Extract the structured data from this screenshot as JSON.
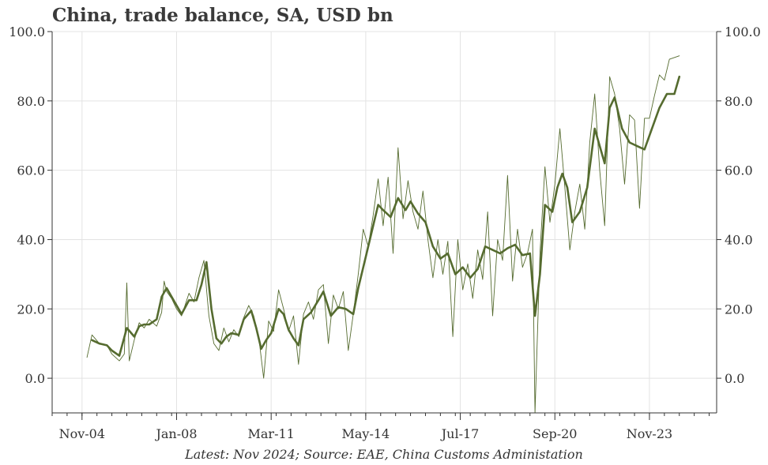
{
  "chart_data": {
    "type": "line",
    "title": "China, trade balance, SA, USD bn",
    "footnote": "Latest: Nov 2024; Source: EAE, China Customs Administation",
    "xlabel": "",
    "ylabel": "",
    "ylim": [
      -10,
      100
    ],
    "y_ticks": [
      0,
      20,
      40,
      60,
      80,
      100
    ],
    "y_tick_labels": [
      "0.0",
      "20.0",
      "40.0",
      "60.0",
      "80.0",
      "100.0"
    ],
    "y_axes": "left and right",
    "x_tick_labels": [
      "Nov-04",
      "Jan-08",
      "Mar-11",
      "May-14",
      "Jul-17",
      "Sep-20",
      "Nov-23"
    ],
    "x_range": [
      "2003-11",
      "2026-02"
    ],
    "grid": true,
    "line_color": "#556b2f",
    "grid_color": "#e3e3e3",
    "axis_color": "#333333",
    "series": [
      {
        "style": "thin",
        "points": [
          [
            "2005-01",
            6.0
          ],
          [
            "2005-03",
            12.5
          ],
          [
            "2005-06",
            10.0
          ],
          [
            "2005-09",
            9.5
          ],
          [
            "2005-11",
            7.0
          ],
          [
            "2006-02",
            5.0
          ],
          [
            "2006-04",
            7.0
          ],
          [
            "2006-05",
            27.5
          ],
          [
            "2006-06",
            5.0
          ],
          [
            "2006-08",
            11.0
          ],
          [
            "2006-10",
            16.0
          ],
          [
            "2006-12",
            14.5
          ],
          [
            "2007-02",
            17.0
          ],
          [
            "2007-05",
            15.0
          ],
          [
            "2007-07",
            19.0
          ],
          [
            "2007-08",
            28.0
          ],
          [
            "2007-09",
            25.0
          ],
          [
            "2007-11",
            23.0
          ],
          [
            "2008-01",
            20.0
          ],
          [
            "2008-03",
            18.0
          ],
          [
            "2008-06",
            24.5
          ],
          [
            "2008-08",
            22.0
          ],
          [
            "2008-10",
            29.0
          ],
          [
            "2008-12",
            34.0
          ],
          [
            "2009-02",
            18.0
          ],
          [
            "2009-04",
            10.0
          ],
          [
            "2009-06",
            8.0
          ],
          [
            "2009-08",
            14.5
          ],
          [
            "2009-10",
            10.5
          ],
          [
            "2009-12",
            14.0
          ],
          [
            "2010-02",
            12.0
          ],
          [
            "2010-04",
            17.5
          ],
          [
            "2010-06",
            21.0
          ],
          [
            "2010-08",
            18.0
          ],
          [
            "2010-10",
            12.0
          ],
          [
            "2010-12",
            0.0
          ],
          [
            "2011-02",
            16.5
          ],
          [
            "2011-04",
            13.5
          ],
          [
            "2011-06",
            25.5
          ],
          [
            "2011-08",
            20.0
          ],
          [
            "2011-10",
            13.5
          ],
          [
            "2011-12",
            18.0
          ],
          [
            "2012-02",
            4.0
          ],
          [
            "2012-04",
            18.5
          ],
          [
            "2012-06",
            22.0
          ],
          [
            "2012-08",
            17.0
          ],
          [
            "2012-10",
            25.5
          ],
          [
            "2012-12",
            27.0
          ],
          [
            "2013-02",
            10.0
          ],
          [
            "2013-04",
            24.0
          ],
          [
            "2013-06",
            20.0
          ],
          [
            "2013-08",
            25.0
          ],
          [
            "2013-10",
            8.0
          ],
          [
            "2013-12",
            18.5
          ],
          [
            "2014-02",
            30.0
          ],
          [
            "2014-04",
            43.0
          ],
          [
            "2014-06",
            38.0
          ],
          [
            "2014-08",
            47.0
          ],
          [
            "2014-10",
            57.5
          ],
          [
            "2014-12",
            44.0
          ],
          [
            "2015-02",
            58.0
          ],
          [
            "2015-04",
            36.0
          ],
          [
            "2015-06",
            66.5
          ],
          [
            "2015-08",
            46.0
          ],
          [
            "2015-10",
            57.0
          ],
          [
            "2015-12",
            48.0
          ],
          [
            "2016-02",
            43.0
          ],
          [
            "2016-04",
            54.0
          ],
          [
            "2016-06",
            40.0
          ],
          [
            "2016-08",
            29.0
          ],
          [
            "2016-10",
            40.0
          ],
          [
            "2016-12",
            30.0
          ],
          [
            "2017-02",
            39.5
          ],
          [
            "2017-04",
            12.0
          ],
          [
            "2017-06",
            40.0
          ],
          [
            "2017-08",
            25.5
          ],
          [
            "2017-10",
            33.0
          ],
          [
            "2017-12",
            23.0
          ],
          [
            "2018-02",
            37.0
          ],
          [
            "2018-04",
            28.5
          ],
          [
            "2018-06",
            48.0
          ],
          [
            "2018-08",
            18.0
          ],
          [
            "2018-10",
            40.0
          ],
          [
            "2018-12",
            34.0
          ],
          [
            "2019-02",
            58.5
          ],
          [
            "2019-04",
            28.0
          ],
          [
            "2019-06",
            43.0
          ],
          [
            "2019-08",
            32.0
          ],
          [
            "2019-10",
            36.0
          ],
          [
            "2019-12",
            43.0
          ],
          [
            "2020-01",
            -10.0
          ],
          [
            "2020-03",
            36.0
          ],
          [
            "2020-05",
            61.0
          ],
          [
            "2020-07",
            45.0
          ],
          [
            "2020-09",
            56.0
          ],
          [
            "2020-11",
            72.0
          ],
          [
            "2021-01",
            55.0
          ],
          [
            "2021-03",
            37.0
          ],
          [
            "2021-05",
            48.0
          ],
          [
            "2021-07",
            56.0
          ],
          [
            "2021-09",
            43.0
          ],
          [
            "2021-11",
            68.0
          ],
          [
            "2022-01",
            82.0
          ],
          [
            "2022-03",
            60.0
          ],
          [
            "2022-05",
            44.0
          ],
          [
            "2022-07",
            87.0
          ],
          [
            "2022-09",
            82.0
          ],
          [
            "2022-11",
            72.0
          ],
          [
            "2023-01",
            56.0
          ],
          [
            "2023-03",
            76.0
          ],
          [
            "2023-05",
            74.5
          ],
          [
            "2023-07",
            49.0
          ],
          [
            "2023-09",
            75.0
          ],
          [
            "2023-11",
            75.0
          ],
          [
            "2024-01",
            81.5
          ],
          [
            "2024-03",
            87.5
          ],
          [
            "2024-05",
            86.0
          ],
          [
            "2024-07",
            92.0
          ],
          [
            "2024-11",
            93.0
          ]
        ]
      },
      {
        "style": "thick",
        "points": [
          [
            "2005-03",
            11.0
          ],
          [
            "2005-06",
            10.0
          ],
          [
            "2005-09",
            9.5
          ],
          [
            "2005-11",
            8.0
          ],
          [
            "2006-02",
            6.5
          ],
          [
            "2006-05",
            14.5
          ],
          [
            "2006-08",
            12.0
          ],
          [
            "2006-10",
            15.0
          ],
          [
            "2006-12",
            15.5
          ],
          [
            "2007-02",
            15.5
          ],
          [
            "2007-05",
            17.0
          ],
          [
            "2007-07",
            23.5
          ],
          [
            "2007-09",
            26.0
          ],
          [
            "2007-11",
            23.5
          ],
          [
            "2008-01",
            21.0
          ],
          [
            "2008-03",
            18.5
          ],
          [
            "2008-06",
            22.5
          ],
          [
            "2008-09",
            22.5
          ],
          [
            "2008-11",
            27.0
          ],
          [
            "2009-01",
            33.5
          ],
          [
            "2009-03",
            20.0
          ],
          [
            "2009-05",
            11.5
          ],
          [
            "2009-07",
            10.0
          ],
          [
            "2009-09",
            12.0
          ],
          [
            "2009-11",
            13.0
          ],
          [
            "2010-02",
            12.5
          ],
          [
            "2010-04",
            17.0
          ],
          [
            "2010-07",
            19.5
          ],
          [
            "2010-09",
            14.5
          ],
          [
            "2010-11",
            8.5
          ],
          [
            "2011-01",
            11.0
          ],
          [
            "2011-03",
            13.0
          ],
          [
            "2011-06",
            20.0
          ],
          [
            "2011-08",
            18.5
          ],
          [
            "2011-10",
            14.0
          ],
          [
            "2011-12",
            11.5
          ],
          [
            "2012-02",
            9.5
          ],
          [
            "2012-04",
            17.0
          ],
          [
            "2012-07",
            19.0
          ],
          [
            "2012-10",
            22.5
          ],
          [
            "2012-12",
            25.0
          ],
          [
            "2013-03",
            18.0
          ],
          [
            "2013-06",
            20.5
          ],
          [
            "2013-09",
            20.0
          ],
          [
            "2013-12",
            18.5
          ],
          [
            "2014-02",
            26.0
          ],
          [
            "2014-05",
            35.0
          ],
          [
            "2014-08",
            44.0
          ],
          [
            "2014-10",
            50.0
          ],
          [
            "2014-12",
            48.5
          ],
          [
            "2015-03",
            46.5
          ],
          [
            "2015-06",
            52.0
          ],
          [
            "2015-09",
            48.5
          ],
          [
            "2015-11",
            51.0
          ],
          [
            "2016-02",
            47.5
          ],
          [
            "2016-05",
            45.0
          ],
          [
            "2016-08",
            38.0
          ],
          [
            "2016-11",
            34.5
          ],
          [
            "2017-02",
            36.0
          ],
          [
            "2017-05",
            30.0
          ],
          [
            "2017-08",
            32.0
          ],
          [
            "2017-11",
            29.0
          ],
          [
            "2018-02",
            31.5
          ],
          [
            "2018-05",
            38.0
          ],
          [
            "2018-08",
            37.0
          ],
          [
            "2018-11",
            36.0
          ],
          [
            "2019-02",
            37.5
          ],
          [
            "2019-05",
            38.5
          ],
          [
            "2019-08",
            35.5
          ],
          [
            "2019-11",
            36.0
          ],
          [
            "2020-01",
            18.0
          ],
          [
            "2020-03",
            30.0
          ],
          [
            "2020-05",
            50.0
          ],
          [
            "2020-08",
            48.0
          ],
          [
            "2020-10",
            55.0
          ],
          [
            "2020-12",
            59.0
          ],
          [
            "2021-02",
            55.0
          ],
          [
            "2021-04",
            45.0
          ],
          [
            "2021-07",
            48.0
          ],
          [
            "2021-10",
            55.0
          ],
          [
            "2022-01",
            72.0
          ],
          [
            "2022-03",
            67.0
          ],
          [
            "2022-05",
            62.0
          ],
          [
            "2022-07",
            78.0
          ],
          [
            "2022-09",
            81.0
          ],
          [
            "2022-12",
            72.0
          ],
          [
            "2023-03",
            68.0
          ],
          [
            "2023-06",
            67.0
          ],
          [
            "2023-09",
            66.0
          ],
          [
            "2023-12",
            72.0
          ],
          [
            "2024-03",
            78.0
          ],
          [
            "2024-06",
            82.0
          ],
          [
            "2024-09",
            82.0
          ],
          [
            "2024-11",
            87.0
          ]
        ]
      }
    ]
  }
}
